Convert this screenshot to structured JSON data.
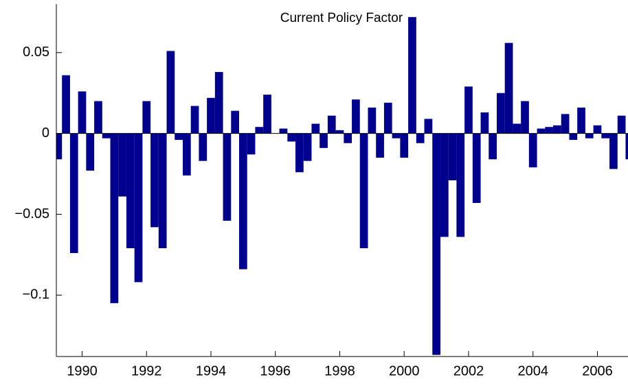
{
  "chart_data": {
    "type": "bar",
    "title": "Current Policy Factor",
    "color": "#00008f",
    "x": [
      1989.25,
      1989.5,
      1989.75,
      1990,
      1990.25,
      1990.5,
      1990.75,
      1991,
      1991.25,
      1991.5,
      1991.75,
      1992,
      1992.25,
      1992.5,
      1992.75,
      1993,
      1993.25,
      1993.5,
      1993.75,
      1994,
      1994.25,
      1994.5,
      1994.75,
      1995,
      1995.25,
      1995.5,
      1995.75,
      1996,
      1996.25,
      1996.5,
      1996.75,
      1997,
      1997.25,
      1997.5,
      1997.75,
      1998,
      1998.25,
      1998.5,
      1998.75,
      1999,
      1999.25,
      1999.5,
      1999.75,
      2000,
      2000.25,
      2000.5,
      2000.75,
      2001,
      2001.25,
      2001.5,
      2001.75,
      2002,
      2002.25,
      2002.5,
      2002.75,
      2003,
      2003.25,
      2003.5,
      2003.75,
      2004,
      2004.25,
      2004.5,
      2004.75,
      2005,
      2005.25,
      2005.5,
      2005.75,
      2006,
      2006.25,
      2006.5,
      2006.75,
      2007
    ],
    "values": [
      -0.016,
      0.036,
      -0.074,
      0.026,
      -0.023,
      0.02,
      -0.003,
      -0.105,
      -0.039,
      -0.071,
      -0.092,
      0.02,
      -0.058,
      -0.071,
      0.051,
      -0.004,
      -0.026,
      0.017,
      -0.017,
      0.022,
      0.038,
      -0.054,
      0.014,
      -0.084,
      -0.013,
      0.004,
      0.024,
      0,
      0.003,
      -0.005,
      -0.024,
      -0.017,
      0.006,
      -0.009,
      0.011,
      0.002,
      -0.006,
      0.021,
      -0.071,
      0.016,
      -0.015,
      0.019,
      -0.003,
      -0.015,
      0.072,
      -0.006,
      0.009,
      -0.137,
      -0.064,
      -0.029,
      -0.064,
      0.029,
      -0.043,
      0.013,
      -0.016,
      0.025,
      0.056,
      0.006,
      0.02,
      -0.021,
      0.003,
      0.004,
      0.005,
      0.012,
      -0.004,
      0.016,
      -0.003,
      0.005,
      -0.003,
      -0.022,
      0.011,
      -0.016
    ],
    "bar_width": 0.25,
    "xlim": [
      1989.2,
      2006.95
    ],
    "xticks": [
      1990,
      1992,
      1994,
      1996,
      1998,
      2000,
      2002,
      2004,
      2006
    ],
    "ylim": [
      -0.138,
      0.08
    ],
    "yticks": [
      {
        "value": 0.05,
        "label": "0.05"
      },
      0,
      {
        "value": -0.05,
        "label": "−0.05"
      },
      {
        "value": -0.1,
        "label": "−0.1"
      }
    ]
  }
}
